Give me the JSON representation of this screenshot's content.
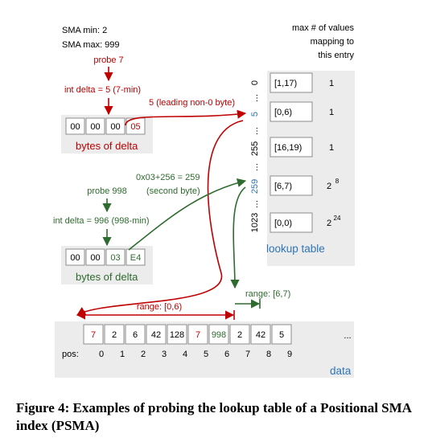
{
  "sma": {
    "min_label": "SMA min:  2",
    "max_label": "SMA max: 999"
  },
  "probe1": {
    "probe_label": "probe 7",
    "delta_label": "int delta = 5 (7-min)",
    "leading_label": "5 (leading non-0 byte)",
    "bytes": [
      "00",
      "00",
      "00",
      "05"
    ],
    "bytes_caption": "bytes of delta",
    "range_label": "range: [0,6)"
  },
  "probe2": {
    "hex_label": "0x03+256 = 259",
    "second_byte_label": "(second byte)",
    "probe_label": "probe 998",
    "delta_label": "int delta = 996 (998-min)",
    "bytes": [
      "00",
      "00",
      "03",
      "E4"
    ],
    "bytes_caption": "bytes of delta",
    "range_label": "range: [6,7)"
  },
  "lookup": {
    "header": [
      "max # of values",
      "mapping to",
      "this entry"
    ],
    "title": "lookup table",
    "row_indices": [
      {
        "label": "0",
        "color": "#000000"
      },
      {
        "label": "5",
        "color": "#2e75b6"
      },
      {
        "label": "255",
        "color": "#000000"
      },
      {
        "label": "259",
        "color": "#2e75b6"
      },
      {
        "label": "1023",
        "color": "#000000"
      }
    ],
    "dots": "…",
    "rows": [
      {
        "range": "[1,17)",
        "count": "1",
        "exp": ""
      },
      {
        "range": "[0,6)",
        "count": "1",
        "exp": ""
      },
      {
        "range": "[16,19)",
        "count": "1",
        "exp": ""
      },
      {
        "range": "[6,7)",
        "count": "2",
        "exp": "8"
      },
      {
        "range": "[0,0)",
        "count": "2",
        "exp": "24"
      }
    ]
  },
  "data_array": {
    "title": "data",
    "pos_label": "pos:",
    "values": [
      {
        "v": "7",
        "color": "#c00000"
      },
      {
        "v": "2",
        "color": "#000000"
      },
      {
        "v": "6",
        "color": "#000000"
      },
      {
        "v": "42",
        "color": "#000000"
      },
      {
        "v": "128",
        "color": "#000000"
      },
      {
        "v": "7",
        "color": "#c00000"
      },
      {
        "v": "998",
        "color": "#2e6b2e"
      },
      {
        "v": "2",
        "color": "#000000"
      },
      {
        "v": "42",
        "color": "#000000"
      },
      {
        "v": "5",
        "color": "#000000"
      }
    ],
    "positions": [
      "0",
      "1",
      "2",
      "3",
      "4",
      "5",
      "6",
      "7",
      "8",
      "9"
    ],
    "ellipsis": "..."
  },
  "colors": {
    "red": "#c00000",
    "green": "#2e6b2e",
    "blue": "#2e75b6",
    "panel": "#ececec"
  },
  "caption": "Figure 4: Examples of probing the lookup table of a Positional SMA index (PSMA)"
}
